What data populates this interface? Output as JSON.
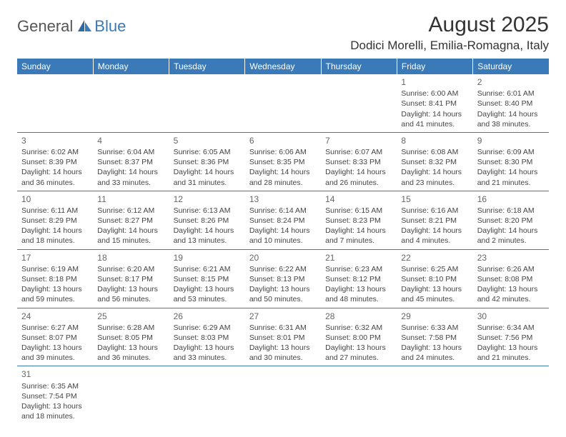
{
  "logo": {
    "general": "General",
    "blue": "Blue"
  },
  "title": "August 2025",
  "location": "Dodici Morelli, Emilia-Romagna, Italy",
  "colors": {
    "header_bg": "#3a7ab8",
    "header_text": "#ffffff",
    "border": "#3a7ab8",
    "text": "#444444",
    "daynum": "#666666",
    "background": "#ffffff"
  },
  "weekdays": [
    "Sunday",
    "Monday",
    "Tuesday",
    "Wednesday",
    "Thursday",
    "Friday",
    "Saturday"
  ],
  "weeks": [
    [
      null,
      null,
      null,
      null,
      null,
      {
        "n": "1",
        "sr": "Sunrise: 6:00 AM",
        "ss": "Sunset: 8:41 PM",
        "d1": "Daylight: 14 hours",
        "d2": "and 41 minutes."
      },
      {
        "n": "2",
        "sr": "Sunrise: 6:01 AM",
        "ss": "Sunset: 8:40 PM",
        "d1": "Daylight: 14 hours",
        "d2": "and 38 minutes."
      }
    ],
    [
      {
        "n": "3",
        "sr": "Sunrise: 6:02 AM",
        "ss": "Sunset: 8:39 PM",
        "d1": "Daylight: 14 hours",
        "d2": "and 36 minutes."
      },
      {
        "n": "4",
        "sr": "Sunrise: 6:04 AM",
        "ss": "Sunset: 8:37 PM",
        "d1": "Daylight: 14 hours",
        "d2": "and 33 minutes."
      },
      {
        "n": "5",
        "sr": "Sunrise: 6:05 AM",
        "ss": "Sunset: 8:36 PM",
        "d1": "Daylight: 14 hours",
        "d2": "and 31 minutes."
      },
      {
        "n": "6",
        "sr": "Sunrise: 6:06 AM",
        "ss": "Sunset: 8:35 PM",
        "d1": "Daylight: 14 hours",
        "d2": "and 28 minutes."
      },
      {
        "n": "7",
        "sr": "Sunrise: 6:07 AM",
        "ss": "Sunset: 8:33 PM",
        "d1": "Daylight: 14 hours",
        "d2": "and 26 minutes."
      },
      {
        "n": "8",
        "sr": "Sunrise: 6:08 AM",
        "ss": "Sunset: 8:32 PM",
        "d1": "Daylight: 14 hours",
        "d2": "and 23 minutes."
      },
      {
        "n": "9",
        "sr": "Sunrise: 6:09 AM",
        "ss": "Sunset: 8:30 PM",
        "d1": "Daylight: 14 hours",
        "d2": "and 21 minutes."
      }
    ],
    [
      {
        "n": "10",
        "sr": "Sunrise: 6:11 AM",
        "ss": "Sunset: 8:29 PM",
        "d1": "Daylight: 14 hours",
        "d2": "and 18 minutes."
      },
      {
        "n": "11",
        "sr": "Sunrise: 6:12 AM",
        "ss": "Sunset: 8:27 PM",
        "d1": "Daylight: 14 hours",
        "d2": "and 15 minutes."
      },
      {
        "n": "12",
        "sr": "Sunrise: 6:13 AM",
        "ss": "Sunset: 8:26 PM",
        "d1": "Daylight: 14 hours",
        "d2": "and 13 minutes."
      },
      {
        "n": "13",
        "sr": "Sunrise: 6:14 AM",
        "ss": "Sunset: 8:24 PM",
        "d1": "Daylight: 14 hours",
        "d2": "and 10 minutes."
      },
      {
        "n": "14",
        "sr": "Sunrise: 6:15 AM",
        "ss": "Sunset: 8:23 PM",
        "d1": "Daylight: 14 hours",
        "d2": "and 7 minutes."
      },
      {
        "n": "15",
        "sr": "Sunrise: 6:16 AM",
        "ss": "Sunset: 8:21 PM",
        "d1": "Daylight: 14 hours",
        "d2": "and 4 minutes."
      },
      {
        "n": "16",
        "sr": "Sunrise: 6:18 AM",
        "ss": "Sunset: 8:20 PM",
        "d1": "Daylight: 14 hours",
        "d2": "and 2 minutes."
      }
    ],
    [
      {
        "n": "17",
        "sr": "Sunrise: 6:19 AM",
        "ss": "Sunset: 8:18 PM",
        "d1": "Daylight: 13 hours",
        "d2": "and 59 minutes."
      },
      {
        "n": "18",
        "sr": "Sunrise: 6:20 AM",
        "ss": "Sunset: 8:17 PM",
        "d1": "Daylight: 13 hours",
        "d2": "and 56 minutes."
      },
      {
        "n": "19",
        "sr": "Sunrise: 6:21 AM",
        "ss": "Sunset: 8:15 PM",
        "d1": "Daylight: 13 hours",
        "d2": "and 53 minutes."
      },
      {
        "n": "20",
        "sr": "Sunrise: 6:22 AM",
        "ss": "Sunset: 8:13 PM",
        "d1": "Daylight: 13 hours",
        "d2": "and 50 minutes."
      },
      {
        "n": "21",
        "sr": "Sunrise: 6:23 AM",
        "ss": "Sunset: 8:12 PM",
        "d1": "Daylight: 13 hours",
        "d2": "and 48 minutes."
      },
      {
        "n": "22",
        "sr": "Sunrise: 6:25 AM",
        "ss": "Sunset: 8:10 PM",
        "d1": "Daylight: 13 hours",
        "d2": "and 45 minutes."
      },
      {
        "n": "23",
        "sr": "Sunrise: 6:26 AM",
        "ss": "Sunset: 8:08 PM",
        "d1": "Daylight: 13 hours",
        "d2": "and 42 minutes."
      }
    ],
    [
      {
        "n": "24",
        "sr": "Sunrise: 6:27 AM",
        "ss": "Sunset: 8:07 PM",
        "d1": "Daylight: 13 hours",
        "d2": "and 39 minutes."
      },
      {
        "n": "25",
        "sr": "Sunrise: 6:28 AM",
        "ss": "Sunset: 8:05 PM",
        "d1": "Daylight: 13 hours",
        "d2": "and 36 minutes."
      },
      {
        "n": "26",
        "sr": "Sunrise: 6:29 AM",
        "ss": "Sunset: 8:03 PM",
        "d1": "Daylight: 13 hours",
        "d2": "and 33 minutes."
      },
      {
        "n": "27",
        "sr": "Sunrise: 6:31 AM",
        "ss": "Sunset: 8:01 PM",
        "d1": "Daylight: 13 hours",
        "d2": "and 30 minutes."
      },
      {
        "n": "28",
        "sr": "Sunrise: 6:32 AM",
        "ss": "Sunset: 8:00 PM",
        "d1": "Daylight: 13 hours",
        "d2": "and 27 minutes."
      },
      {
        "n": "29",
        "sr": "Sunrise: 6:33 AM",
        "ss": "Sunset: 7:58 PM",
        "d1": "Daylight: 13 hours",
        "d2": "and 24 minutes."
      },
      {
        "n": "30",
        "sr": "Sunrise: 6:34 AM",
        "ss": "Sunset: 7:56 PM",
        "d1": "Daylight: 13 hours",
        "d2": "and 21 minutes."
      }
    ],
    [
      {
        "n": "31",
        "sr": "Sunrise: 6:35 AM",
        "ss": "Sunset: 7:54 PM",
        "d1": "Daylight: 13 hours",
        "d2": "and 18 minutes."
      },
      null,
      null,
      null,
      null,
      null,
      null
    ]
  ]
}
